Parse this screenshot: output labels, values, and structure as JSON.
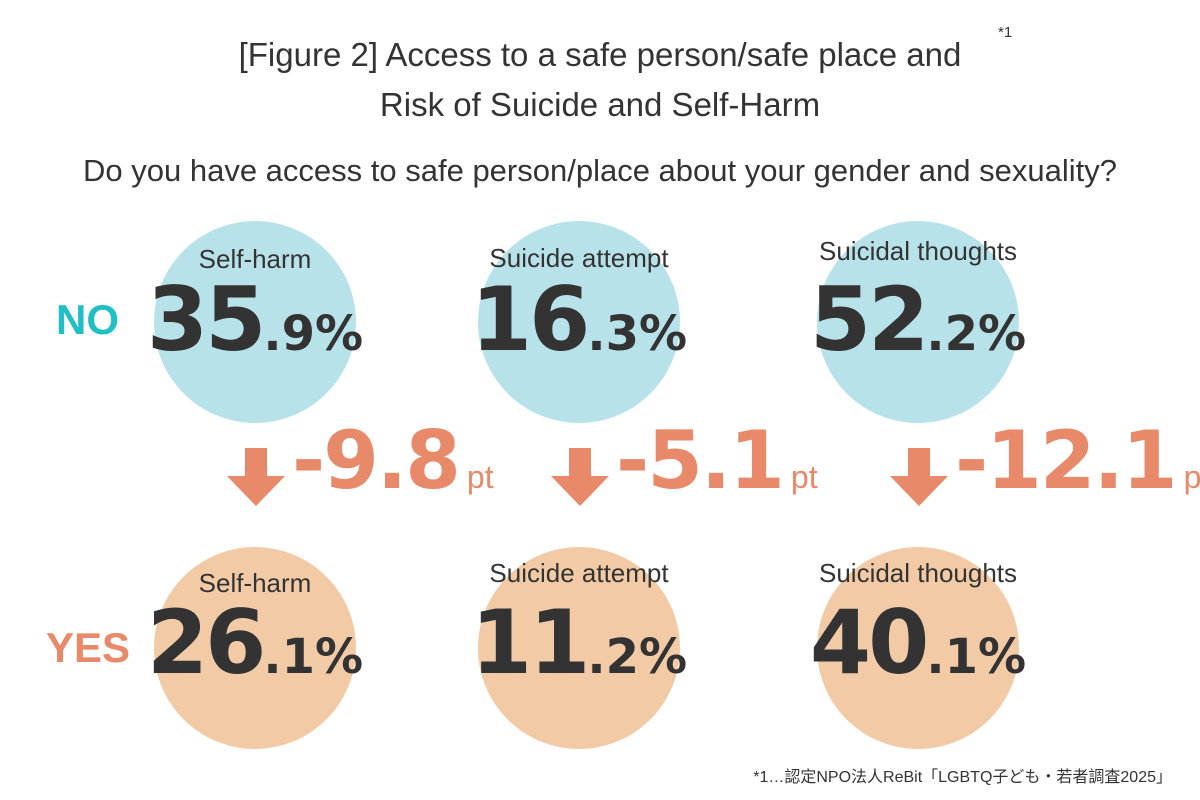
{
  "title": {
    "line1": "[Figure 2] Access to a safe person/safe place and",
    "line2": "Risk of Suicide and Self-Harm",
    "note_marker": "*1"
  },
  "question": "Do you have access to safe person/place about your gender and sexuality?",
  "colors": {
    "no_circle": "#b8e2ea",
    "yes_circle": "#f2cba6",
    "no_label": "#1fbfc5",
    "yes_label": "#e8896a",
    "diff": "#e8896a"
  },
  "rows": {
    "no": "NO",
    "yes": "YES"
  },
  "columns": [
    {
      "label": "Self-harm",
      "no_int": "35",
      "no_dec": ".9%",
      "yes_int": "26",
      "yes_dec": ".1%",
      "diff": "-9.8",
      "unit": "pt"
    },
    {
      "label": "Suicide attempt",
      "no_int": "16",
      "no_dec": ".3%",
      "yes_int": "11",
      "yes_dec": ".2%",
      "diff": "-5.1",
      "unit": "pt"
    },
    {
      "label": "Suicidal thoughts",
      "no_int": "52",
      "no_dec": ".2%",
      "yes_int": "40",
      "yes_dec": ".1%",
      "diff": "-12.1",
      "unit": "pt"
    }
  ],
  "footnote": "*1…認定NPO法人ReBit「LGBTQ子ども・若者調査2025」",
  "chart_data": {
    "type": "table",
    "title": "[Figure 2] Access to a safe person/safe place and Risk of Suicide and Self-Harm",
    "categories": [
      "Self-harm",
      "Suicide attempt",
      "Suicidal thoughts"
    ],
    "series": [
      {
        "name": "NO",
        "values": [
          35.9,
          16.3,
          52.2
        ]
      },
      {
        "name": "YES",
        "values": [
          26.1,
          11.2,
          40.1
        ]
      }
    ],
    "differences_pt": [
      -9.8,
      -5.1,
      -12.1
    ]
  }
}
